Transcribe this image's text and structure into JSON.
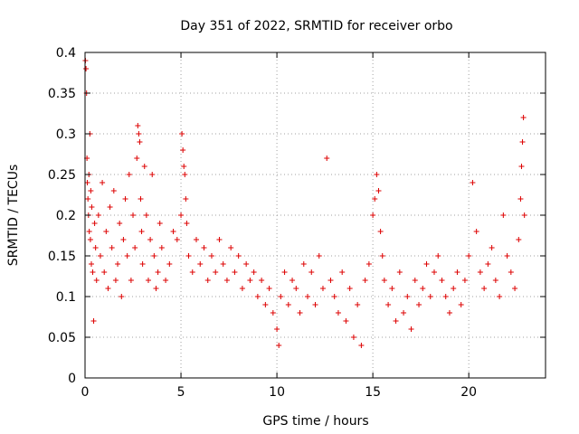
{
  "chart_data": {
    "type": "scatter",
    "title": "Day 351 of 2022, SRMTID for receiver orbo",
    "xlabel": "GPS time / hours",
    "ylabel": "SRMTID / TECUs",
    "xlim": [
      0,
      24
    ],
    "ylim": [
      0,
      0.4
    ],
    "xticks": [
      0,
      5,
      10,
      15,
      20
    ],
    "yticks": [
      0,
      0.05,
      0.1,
      0.15,
      0.2,
      0.25,
      0.3,
      0.35,
      0.4
    ],
    "grid": true,
    "marker": "plus",
    "color": "#dd0000",
    "series": [
      {
        "name": "SRMTID",
        "x": [
          0.02,
          0.05,
          0.08,
          0.1,
          0.12,
          0.15,
          0.18,
          0.2,
          0.22,
          0.25,
          0.28,
          0.3,
          0.33,
          0.35,
          0.4,
          0.45,
          0.5,
          0.55,
          0.6,
          0.7,
          0.8,
          0.9,
          1.0,
          1.1,
          1.2,
          1.3,
          1.4,
          1.5,
          1.6,
          1.7,
          1.8,
          1.9,
          2.0,
          2.1,
          2.2,
          2.3,
          2.4,
          2.5,
          2.6,
          2.7,
          2.75,
          2.8,
          2.85,
          2.9,
          2.95,
          3.0,
          3.1,
          3.2,
          3.3,
          3.4,
          3.5,
          3.6,
          3.7,
          3.8,
          3.9,
          4.0,
          4.2,
          4.4,
          4.6,
          4.8,
          5.0,
          5.05,
          5.1,
          5.15,
          5.2,
          5.25,
          5.3,
          5.4,
          5.6,
          5.8,
          6.0,
          6.2,
          6.4,
          6.6,
          6.8,
          7.0,
          7.2,
          7.4,
          7.6,
          7.8,
          8.0,
          8.2,
          8.4,
          8.6,
          8.8,
          9.0,
          9.2,
          9.4,
          9.6,
          9.8,
          10.0,
          10.1,
          10.2,
          10.4,
          10.6,
          10.8,
          11.0,
          11.2,
          11.4,
          11.6,
          11.8,
          12.0,
          12.2,
          12.4,
          12.6,
          12.8,
          13.0,
          13.2,
          13.4,
          13.6,
          13.8,
          14.0,
          14.2,
          14.4,
          14.6,
          14.8,
          15.0,
          15.1,
          15.2,
          15.3,
          15.4,
          15.5,
          15.6,
          15.8,
          16.0,
          16.2,
          16.4,
          16.6,
          16.8,
          17.0,
          17.2,
          17.4,
          17.6,
          17.8,
          18.0,
          18.2,
          18.4,
          18.6,
          18.8,
          19.0,
          19.2,
          19.4,
          19.6,
          19.8,
          20.0,
          20.2,
          20.4,
          20.6,
          20.8,
          21.0,
          21.2,
          21.4,
          21.6,
          21.8,
          22.0,
          22.2,
          22.4,
          22.6,
          22.7,
          22.75,
          22.8,
          22.85,
          22.9
        ],
        "y": [
          0.39,
          0.38,
          0.35,
          0.27,
          0.24,
          0.22,
          0.2,
          0.25,
          0.18,
          0.3,
          0.17,
          0.23,
          0.14,
          0.21,
          0.13,
          0.07,
          0.19,
          0.16,
          0.12,
          0.2,
          0.15,
          0.24,
          0.13,
          0.18,
          0.11,
          0.21,
          0.16,
          0.23,
          0.12,
          0.14,
          0.19,
          0.1,
          0.17,
          0.22,
          0.15,
          0.25,
          0.12,
          0.2,
          0.16,
          0.27,
          0.31,
          0.3,
          0.29,
          0.22,
          0.18,
          0.14,
          0.26,
          0.2,
          0.12,
          0.17,
          0.25,
          0.15,
          0.11,
          0.13,
          0.19,
          0.16,
          0.12,
          0.14,
          0.18,
          0.17,
          0.2,
          0.3,
          0.28,
          0.26,
          0.25,
          0.22,
          0.19,
          0.15,
          0.13,
          0.17,
          0.14,
          0.16,
          0.12,
          0.15,
          0.13,
          0.17,
          0.14,
          0.12,
          0.16,
          0.13,
          0.15,
          0.11,
          0.14,
          0.12,
          0.13,
          0.1,
          0.12,
          0.09,
          0.11,
          0.08,
          0.06,
          0.04,
          0.1,
          0.13,
          0.09,
          0.12,
          0.11,
          0.08,
          0.14,
          0.1,
          0.13,
          0.09,
          0.15,
          0.11,
          0.27,
          0.12,
          0.1,
          0.08,
          0.13,
          0.07,
          0.11,
          0.05,
          0.09,
          0.04,
          0.12,
          0.14,
          0.2,
          0.22,
          0.25,
          0.23,
          0.18,
          0.15,
          0.12,
          0.09,
          0.11,
          0.07,
          0.13,
          0.08,
          0.1,
          0.06,
          0.12,
          0.09,
          0.11,
          0.14,
          0.1,
          0.13,
          0.15,
          0.12,
          0.1,
          0.08,
          0.11,
          0.13,
          0.09,
          0.12,
          0.15,
          0.24,
          0.18,
          0.13,
          0.11,
          0.14,
          0.16,
          0.12,
          0.1,
          0.2,
          0.15,
          0.13,
          0.11,
          0.17,
          0.22,
          0.26,
          0.29,
          0.32,
          0.2
        ]
      }
    ]
  }
}
